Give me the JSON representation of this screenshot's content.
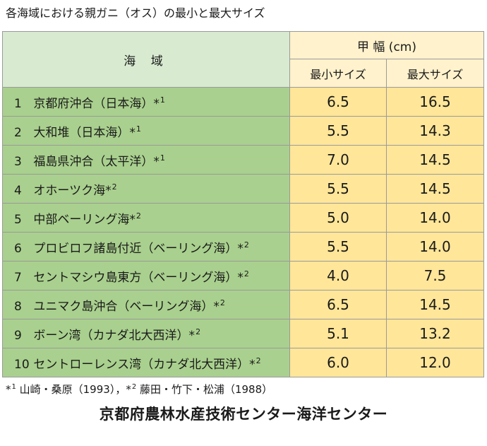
{
  "title": "各海域における親ガニ（オス）の最小と最大サイズ",
  "header": {
    "sea": "海 域",
    "carapace": "甲 幅 (cm)",
    "min": "最小サイズ",
    "max": "最大サイズ"
  },
  "rows": [
    {
      "no": "1",
      "name": "京都府沖合（日本海）*",
      "ref": "1",
      "min": "6.5",
      "max": "16.5"
    },
    {
      "no": "2",
      "name": "大和堆（日本海）*",
      "ref": "1",
      "min": "5.5",
      "max": "14.3"
    },
    {
      "no": "3",
      "name": "福島県沖合（太平洋）*",
      "ref": "1",
      "min": "7.0",
      "max": "14.5"
    },
    {
      "no": "4",
      "name": "オホーツク海*",
      "ref": "2",
      "min": "5.5",
      "max": "14.5"
    },
    {
      "no": "5",
      "name": "中部ベーリング海*",
      "ref": "2",
      "min": "5.0",
      "max": "14.0"
    },
    {
      "no": "6",
      "name": "プロビロフ諸島付近（ベーリング海）*",
      "ref": "2",
      "min": "5.5",
      "max": "14.0"
    },
    {
      "no": "7",
      "name": "セントマシウ島東方（ベーリング海）*",
      "ref": "2",
      "min": "4.0",
      "max": "7.5"
    },
    {
      "no": "8",
      "name": "ユニマク島沖合（ベーリング海）*",
      "ref": "2",
      "min": "6.5",
      "max": "14.5"
    },
    {
      "no": "9",
      "name": "ボーン湾（カナダ北大西洋）*",
      "ref": "2",
      "min": "5.1",
      "max": "13.2"
    },
    {
      "no": "10",
      "name": "セントローレンス湾（カナダ北大西洋）*",
      "ref": "2",
      "min": "6.0",
      "max": "12.0"
    }
  ],
  "footnote": {
    "mark1": "*",
    "sup1": "1",
    "text1": " 山崎・桑原（1993），",
    "mark2": "*",
    "sup2": "2",
    "text2": " 藤田・竹下・松浦（1988）"
  },
  "credit": "京都府農林水産技術センター海洋センター"
}
